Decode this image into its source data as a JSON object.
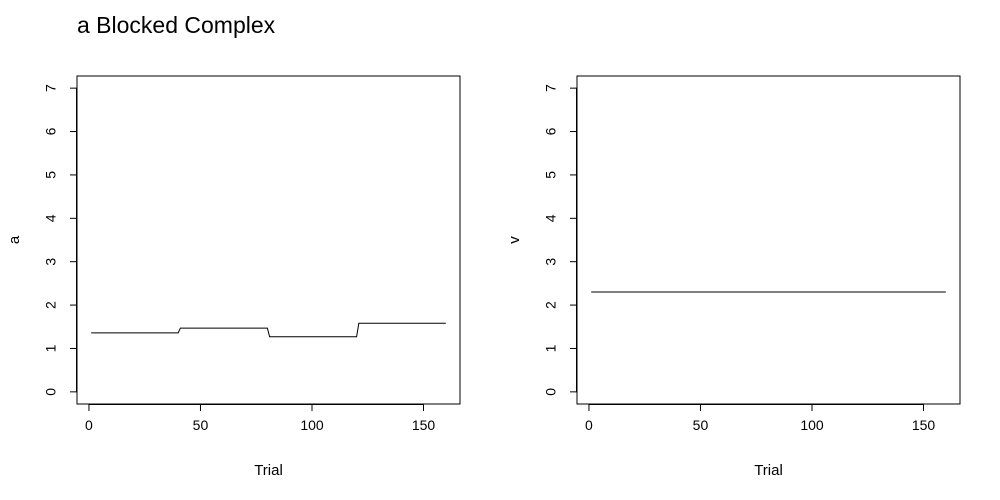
{
  "figure": {
    "title": "a Blocked Complex"
  },
  "chart_data": [
    {
      "type": "line",
      "title": "",
      "xlabel": "Trial",
      "ylabel": "a",
      "xlim": [
        1,
        160
      ],
      "ylim": [
        0,
        7
      ],
      "xticks": [
        0,
        50,
        100,
        150
      ],
      "yticks": [
        0,
        1,
        2,
        3,
        4,
        5,
        6,
        7
      ],
      "grid": false,
      "series": [
        {
          "name": "",
          "color": "#000000",
          "x": [
            1,
            40,
            41,
            80,
            81,
            120,
            121,
            160
          ],
          "y": [
            1.36,
            1.36,
            1.47,
            1.47,
            1.27,
            1.27,
            1.58,
            1.58
          ]
        }
      ]
    },
    {
      "type": "line",
      "title": "",
      "xlabel": "Trial",
      "ylabel": "v",
      "xlim": [
        1,
        160
      ],
      "ylim": [
        0,
        7
      ],
      "xticks": [
        0,
        50,
        100,
        150
      ],
      "yticks": [
        0,
        1,
        2,
        3,
        4,
        5,
        6,
        7
      ],
      "grid": false,
      "series": [
        {
          "name": "",
          "color": "#000000",
          "x": [
            1,
            160
          ],
          "y": [
            2.3,
            2.3
          ]
        }
      ]
    }
  ]
}
